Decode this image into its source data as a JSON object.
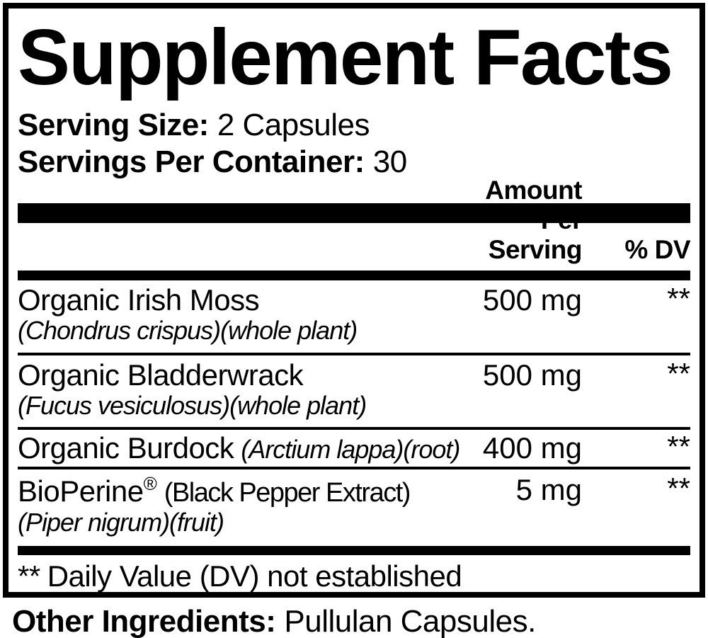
{
  "supplement_label": {
    "title": "Supplement Facts",
    "serving": {
      "size_label": "Serving Size:",
      "size_value": "2 Capsules",
      "per_container_label": "Servings Per Container:",
      "per_container_value": "30"
    },
    "table_header": {
      "amount": "Amount Per Serving",
      "dv": "% DV"
    },
    "rows": [
      {
        "name": "Organic Irish Moss",
        "latin": "(Chondrus crispus)(whole plant)",
        "amount": "500 mg",
        "dv": "**"
      },
      {
        "name": "Organic Bladderwrack",
        "latin": "(Fucus vesiculosus)(whole plant)",
        "amount": "500 mg",
        "dv": "**"
      },
      {
        "name": "Organic Burdock",
        "latin": "(Arctium lappa)(root)",
        "amount": "400 mg",
        "dv": "**"
      },
      {
        "name": "BioPerine",
        "trademark": "®",
        "name_suffix": "(Black Pepper Extract)",
        "latin": "(Piper nigrum)(fruit)",
        "amount": "5 mg",
        "dv": "**"
      }
    ],
    "footnote_marker": "**",
    "footnote_text": "Daily Value (DV) not established",
    "other_ingredients_label": "Other Ingredients:",
    "other_ingredients_value": "Pullulan Capsules."
  },
  "colors": {
    "text": "#000000",
    "background": "#ffffff",
    "rule": "#000000"
  }
}
